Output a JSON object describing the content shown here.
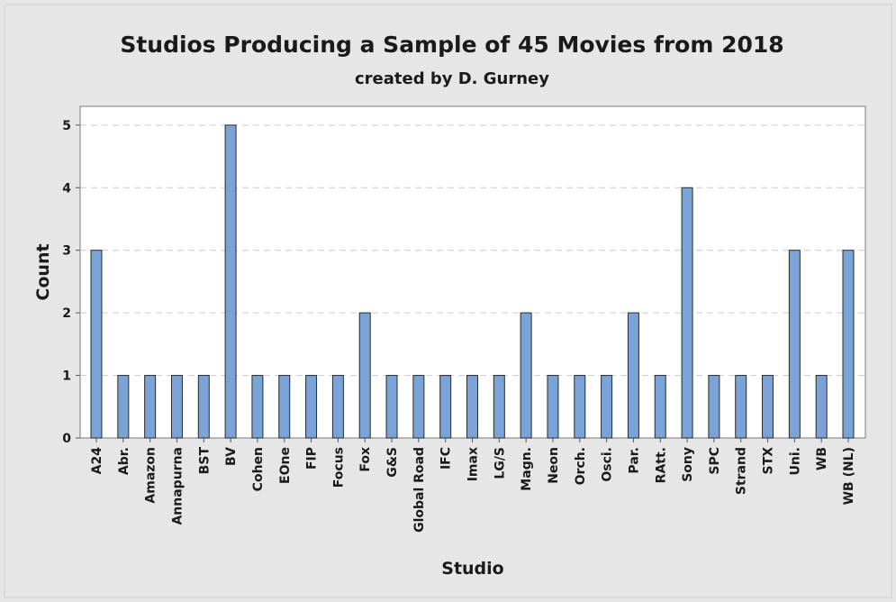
{
  "chart_data": {
    "type": "bar",
    "title": "Studios Producing a Sample of 45 Movies from 2018",
    "subtitle": "created by D. Gurney",
    "xlabel": "Studio",
    "ylabel": "Count",
    "ylim": [
      0,
      5.3
    ],
    "yticks": [
      0,
      1,
      2,
      3,
      4,
      5
    ],
    "grid": true,
    "categories": [
      "A24",
      "Abr.",
      "Amazon",
      "Annapurna",
      "BST",
      "BV",
      "Cohen",
      "EOne",
      "FIP",
      "Focus",
      "Fox",
      "G&S",
      "Global Road",
      "IFC",
      "Imax",
      "LG/S",
      "Magn.",
      "Neon",
      "Orch.",
      "Osci.",
      "Par.",
      "RAtt.",
      "Sony",
      "SPC",
      "Strand",
      "STX",
      "Uni.",
      "WB",
      "WB (NL)"
    ],
    "values": [
      3,
      1,
      1,
      1,
      1,
      5,
      1,
      1,
      1,
      1,
      2,
      1,
      1,
      1,
      1,
      1,
      2,
      1,
      1,
      1,
      2,
      1,
      4,
      1,
      1,
      1,
      3,
      1,
      3
    ]
  },
  "colors": {
    "background": "#e6e6e6",
    "plot_background": "#ffffff",
    "bar_fill": "#7aa3d8",
    "bar_stroke": "#2b2b2b",
    "grid": "#cccccc",
    "text": "#1a1a1a"
  }
}
